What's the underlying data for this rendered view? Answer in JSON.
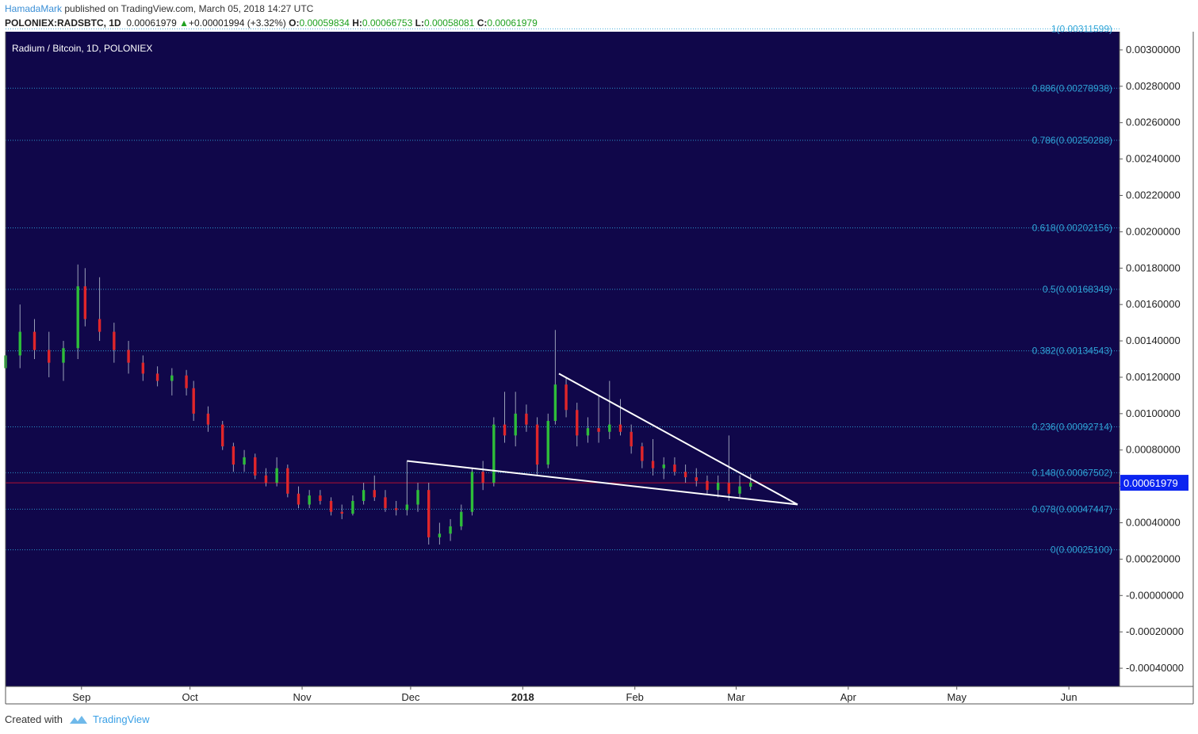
{
  "header": {
    "author": "HamadaMark",
    "published_text": "published on TradingView.com, March 05, 2018 14:27 UTC",
    "symbol": "POLONIEX:RADSBTC, 1D",
    "last": "0.00061979",
    "change": "+0.00001994 (+3.32%)",
    "open_label": "O:",
    "open": "0.00059834",
    "high_label": "H:",
    "high": "0.00066753",
    "low_label": "L:",
    "low": "0.00058081",
    "close_label": "C:",
    "close": "0.00061979"
  },
  "footer": {
    "created_with": "Created with",
    "brand": "TradingView"
  },
  "colors": {
    "background": "#10074a",
    "up": "#2ebd3a",
    "down": "#e0262a",
    "wick": "#9aa0b8",
    "fib": "#2fa5d8",
    "price_line": "#b01030",
    "trendline": "#ffffff",
    "price_tag_bg": "#0b24f0",
    "axis_bg": "#ffffff"
  },
  "chart_data": {
    "type": "candlestick",
    "title": "Radium / Bitcoin, 1D, POLONIEX",
    "x_labels": [
      {
        "label": "Sep",
        "date": "2017-09-01",
        "bold": false
      },
      {
        "label": "Oct",
        "date": "2017-10-01",
        "bold": false
      },
      {
        "label": "Nov",
        "date": "2017-11-01",
        "bold": false
      },
      {
        "label": "Dec",
        "date": "2017-12-01",
        "bold": false
      },
      {
        "label": "2018",
        "date": "2018-01-01",
        "bold": true
      },
      {
        "label": "Feb",
        "date": "2018-02-01",
        "bold": false
      },
      {
        "label": "Mar",
        "date": "2018-03-01",
        "bold": false
      },
      {
        "label": "Apr",
        "date": "2018-04-01",
        "bold": false
      },
      {
        "label": "May",
        "date": "2018-05-01",
        "bold": false
      },
      {
        "label": "Jun",
        "date": "2018-06-01",
        "bold": false
      }
    ],
    "x_range": [
      "2017-08-11",
      "2018-06-15"
    ],
    "y_range": [
      -0.0005,
      0.0031
    ],
    "y_ticks": [
      "0.00300000",
      "0.00280000",
      "0.00260000",
      "0.00240000",
      "0.00220000",
      "0.00200000",
      "0.00180000",
      "0.00160000",
      "0.00140000",
      "0.00120000",
      "0.00100000",
      "0.00080000",
      "0.00060000",
      "0.00040000",
      "0.00020000",
      "-0.00000000",
      "-0.00020000",
      "-0.00040000"
    ],
    "y_tick_values": [
      0.003,
      0.0028,
      0.0026,
      0.0024,
      0.0022,
      0.002,
      0.0018,
      0.0016,
      0.0014,
      0.0012,
      0.001,
      0.0008,
      0.0006,
      0.0004,
      0.0002,
      0.0,
      -0.0002,
      -0.0004
    ],
    "current_price": {
      "value": 0.00061979,
      "label": "0.00061979"
    },
    "fib_levels": [
      {
        "label": "1(0.00311599)",
        "value": 0.00311599
      },
      {
        "label": "0.886(0.00278938)",
        "value": 0.00278938
      },
      {
        "label": "0.786(0.00250288)",
        "value": 0.00250288
      },
      {
        "label": "0.618(0.00202156)",
        "value": 0.00202156
      },
      {
        "label": "0.5(0.00168349)",
        "value": 0.00168349
      },
      {
        "label": "0.382(0.00134543)",
        "value": 0.00134543
      },
      {
        "label": "0.236(0.00092714)",
        "value": 0.00092714
      },
      {
        "label": "0.148(0.00067502)",
        "value": 0.00067502
      },
      {
        "label": "0.078(0.00047447)",
        "value": 0.00047447
      },
      {
        "label": "0(0.00025100)",
        "value": 0.000251
      }
    ],
    "trendlines": [
      {
        "name": "upper",
        "start": [
          "2018-01-11",
          0.00122
        ],
        "end": [
          "2018-03-18",
          0.0005
        ]
      },
      {
        "name": "lower",
        "start": [
          "2017-11-30",
          0.00074
        ],
        "end": [
          "2018-03-18",
          0.0005
        ]
      }
    ],
    "candles": [
      {
        "date": "2017-08-11",
        "o": 0.00125,
        "h": 0.00138,
        "l": 0.00118,
        "c": 0.00132
      },
      {
        "date": "2017-08-15",
        "o": 0.00132,
        "h": 0.0016,
        "l": 0.00125,
        "c": 0.00145
      },
      {
        "date": "2017-08-19",
        "o": 0.00145,
        "h": 0.00152,
        "l": 0.0013,
        "c": 0.00135
      },
      {
        "date": "2017-08-23",
        "o": 0.00135,
        "h": 0.00145,
        "l": 0.0012,
        "c": 0.00128
      },
      {
        "date": "2017-08-27",
        "o": 0.00128,
        "h": 0.0014,
        "l": 0.00118,
        "c": 0.00136
      },
      {
        "date": "2017-08-31",
        "o": 0.00136,
        "h": 0.00182,
        "l": 0.0013,
        "c": 0.0017
      },
      {
        "date": "2017-09-02",
        "o": 0.0017,
        "h": 0.0018,
        "l": 0.00148,
        "c": 0.00152
      },
      {
        "date": "2017-09-06",
        "o": 0.00152,
        "h": 0.00175,
        "l": 0.0014,
        "c": 0.00145
      },
      {
        "date": "2017-09-10",
        "o": 0.00145,
        "h": 0.0015,
        "l": 0.00128,
        "c": 0.00135
      },
      {
        "date": "2017-09-14",
        "o": 0.00135,
        "h": 0.0014,
        "l": 0.00122,
        "c": 0.00128
      },
      {
        "date": "2017-09-18",
        "o": 0.00128,
        "h": 0.00132,
        "l": 0.00118,
        "c": 0.00122
      },
      {
        "date": "2017-09-22",
        "o": 0.00122,
        "h": 0.00126,
        "l": 0.00115,
        "c": 0.00118
      },
      {
        "date": "2017-09-26",
        "o": 0.00118,
        "h": 0.00125,
        "l": 0.0011,
        "c": 0.00121
      },
      {
        "date": "2017-09-30",
        "o": 0.00121,
        "h": 0.00124,
        "l": 0.0011,
        "c": 0.00114
      },
      {
        "date": "2017-10-02",
        "o": 0.00114,
        "h": 0.00118,
        "l": 0.00096,
        "c": 0.001
      },
      {
        "date": "2017-10-06",
        "o": 0.001,
        "h": 0.00104,
        "l": 0.0009,
        "c": 0.00094
      },
      {
        "date": "2017-10-10",
        "o": 0.00094,
        "h": 0.00096,
        "l": 0.0008,
        "c": 0.00082
      },
      {
        "date": "2017-10-13",
        "o": 0.00082,
        "h": 0.00084,
        "l": 0.00068,
        "c": 0.00072
      },
      {
        "date": "2017-10-16",
        "o": 0.00072,
        "h": 0.0008,
        "l": 0.00068,
        "c": 0.00076
      },
      {
        "date": "2017-10-19",
        "o": 0.00076,
        "h": 0.00078,
        "l": 0.00064,
        "c": 0.00066
      },
      {
        "date": "2017-10-22",
        "o": 0.00066,
        "h": 0.0007,
        "l": 0.0006,
        "c": 0.00062
      },
      {
        "date": "2017-10-25",
        "o": 0.00062,
        "h": 0.00076,
        "l": 0.0006,
        "c": 0.0007
      },
      {
        "date": "2017-10-28",
        "o": 0.0007,
        "h": 0.00072,
        "l": 0.00054,
        "c": 0.00056
      },
      {
        "date": "2017-10-31",
        "o": 0.00056,
        "h": 0.0006,
        "l": 0.00048,
        "c": 0.0005
      },
      {
        "date": "2017-11-03",
        "o": 0.0005,
        "h": 0.00058,
        "l": 0.00048,
        "c": 0.00055
      },
      {
        "date": "2017-11-06",
        "o": 0.00055,
        "h": 0.00058,
        "l": 0.0005,
        "c": 0.00052
      },
      {
        "date": "2017-11-09",
        "o": 0.00052,
        "h": 0.00054,
        "l": 0.00044,
        "c": 0.00046
      },
      {
        "date": "2017-11-12",
        "o": 0.00046,
        "h": 0.0005,
        "l": 0.00042,
        "c": 0.00045
      },
      {
        "date": "2017-11-15",
        "o": 0.00045,
        "h": 0.00055,
        "l": 0.00044,
        "c": 0.00052
      },
      {
        "date": "2017-11-18",
        "o": 0.00052,
        "h": 0.00062,
        "l": 0.0005,
        "c": 0.00058
      },
      {
        "date": "2017-11-21",
        "o": 0.00058,
        "h": 0.00066,
        "l": 0.00052,
        "c": 0.00054
      },
      {
        "date": "2017-11-24",
        "o": 0.00054,
        "h": 0.00058,
        "l": 0.00046,
        "c": 0.00048
      },
      {
        "date": "2017-11-27",
        "o": 0.00048,
        "h": 0.00052,
        "l": 0.00044,
        "c": 0.00047
      },
      {
        "date": "2017-11-30",
        "o": 0.00047,
        "h": 0.00074,
        "l": 0.00044,
        "c": 0.0005
      },
      {
        "date": "2017-12-03",
        "o": 0.0005,
        "h": 0.00062,
        "l": 0.00046,
        "c": 0.00058
      },
      {
        "date": "2017-12-06",
        "o": 0.00058,
        "h": 0.00062,
        "l": 0.00028,
        "c": 0.00032
      },
      {
        "date": "2017-12-09",
        "o": 0.00032,
        "h": 0.0004,
        "l": 0.00028,
        "c": 0.00034
      },
      {
        "date": "2017-12-12",
        "o": 0.00034,
        "h": 0.00042,
        "l": 0.0003,
        "c": 0.00038
      },
      {
        "date": "2017-12-15",
        "o": 0.00038,
        "h": 0.0005,
        "l": 0.00036,
        "c": 0.00046
      },
      {
        "date": "2017-12-18",
        "o": 0.00046,
        "h": 0.0007,
        "l": 0.00044,
        "c": 0.00068
      },
      {
        "date": "2017-12-21",
        "o": 0.00068,
        "h": 0.00074,
        "l": 0.00058,
        "c": 0.00062
      },
      {
        "date": "2017-12-24",
        "o": 0.00062,
        "h": 0.00098,
        "l": 0.0006,
        "c": 0.00094
      },
      {
        "date": "2017-12-27",
        "o": 0.00094,
        "h": 0.00112,
        "l": 0.00084,
        "c": 0.00088
      },
      {
        "date": "2017-12-30",
        "o": 0.00088,
        "h": 0.00112,
        "l": 0.00082,
        "c": 0.001
      },
      {
        "date": "2018-01-02",
        "o": 0.001,
        "h": 0.00105,
        "l": 0.0009,
        "c": 0.00094
      },
      {
        "date": "2018-01-05",
        "o": 0.00094,
        "h": 0.00098,
        "l": 0.00066,
        "c": 0.00072
      },
      {
        "date": "2018-01-08",
        "o": 0.00072,
        "h": 0.001,
        "l": 0.0007,
        "c": 0.00096
      },
      {
        "date": "2018-01-10",
        "o": 0.00096,
        "h": 0.00146,
        "l": 0.00094,
        "c": 0.00116
      },
      {
        "date": "2018-01-13",
        "o": 0.00116,
        "h": 0.0012,
        "l": 0.00098,
        "c": 0.00102
      },
      {
        "date": "2018-01-16",
        "o": 0.00102,
        "h": 0.00106,
        "l": 0.00082,
        "c": 0.00088
      },
      {
        "date": "2018-01-19",
        "o": 0.00088,
        "h": 0.00098,
        "l": 0.00084,
        "c": 0.00092
      },
      {
        "date": "2018-01-22",
        "o": 0.00092,
        "h": 0.0011,
        "l": 0.00084,
        "c": 0.0009
      },
      {
        "date": "2018-01-25",
        "o": 0.0009,
        "h": 0.00118,
        "l": 0.00086,
        "c": 0.00094
      },
      {
        "date": "2018-01-28",
        "o": 0.00094,
        "h": 0.00108,
        "l": 0.00088,
        "c": 0.0009
      },
      {
        "date": "2018-01-31",
        "o": 0.0009,
        "h": 0.00094,
        "l": 0.00078,
        "c": 0.00082
      },
      {
        "date": "2018-02-03",
        "o": 0.00082,
        "h": 0.00084,
        "l": 0.0007,
        "c": 0.00074
      },
      {
        "date": "2018-02-06",
        "o": 0.00074,
        "h": 0.00086,
        "l": 0.00066,
        "c": 0.0007
      },
      {
        "date": "2018-02-09",
        "o": 0.0007,
        "h": 0.00076,
        "l": 0.00064,
        "c": 0.00072
      },
      {
        "date": "2018-02-12",
        "o": 0.00072,
        "h": 0.00076,
        "l": 0.00066,
        "c": 0.00068
      },
      {
        "date": "2018-02-15",
        "o": 0.00068,
        "h": 0.00072,
        "l": 0.00062,
        "c": 0.00065
      },
      {
        "date": "2018-02-18",
        "o": 0.00065,
        "h": 0.0007,
        "l": 0.0006,
        "c": 0.00063
      },
      {
        "date": "2018-02-21",
        "o": 0.00063,
        "h": 0.00066,
        "l": 0.00056,
        "c": 0.00058
      },
      {
        "date": "2018-02-24",
        "o": 0.00058,
        "h": 0.00066,
        "l": 0.00054,
        "c": 0.00062
      },
      {
        "date": "2018-02-27",
        "o": 0.00062,
        "h": 0.00088,
        "l": 0.00052,
        "c": 0.00056
      },
      {
        "date": "2018-03-02",
        "o": 0.00056,
        "h": 0.00066,
        "l": 0.00054,
        "c": 0.0006
      },
      {
        "date": "2018-03-05",
        "o": 0.00059834,
        "h": 0.00066753,
        "l": 0.00058081,
        "c": 0.00061979
      }
    ]
  }
}
